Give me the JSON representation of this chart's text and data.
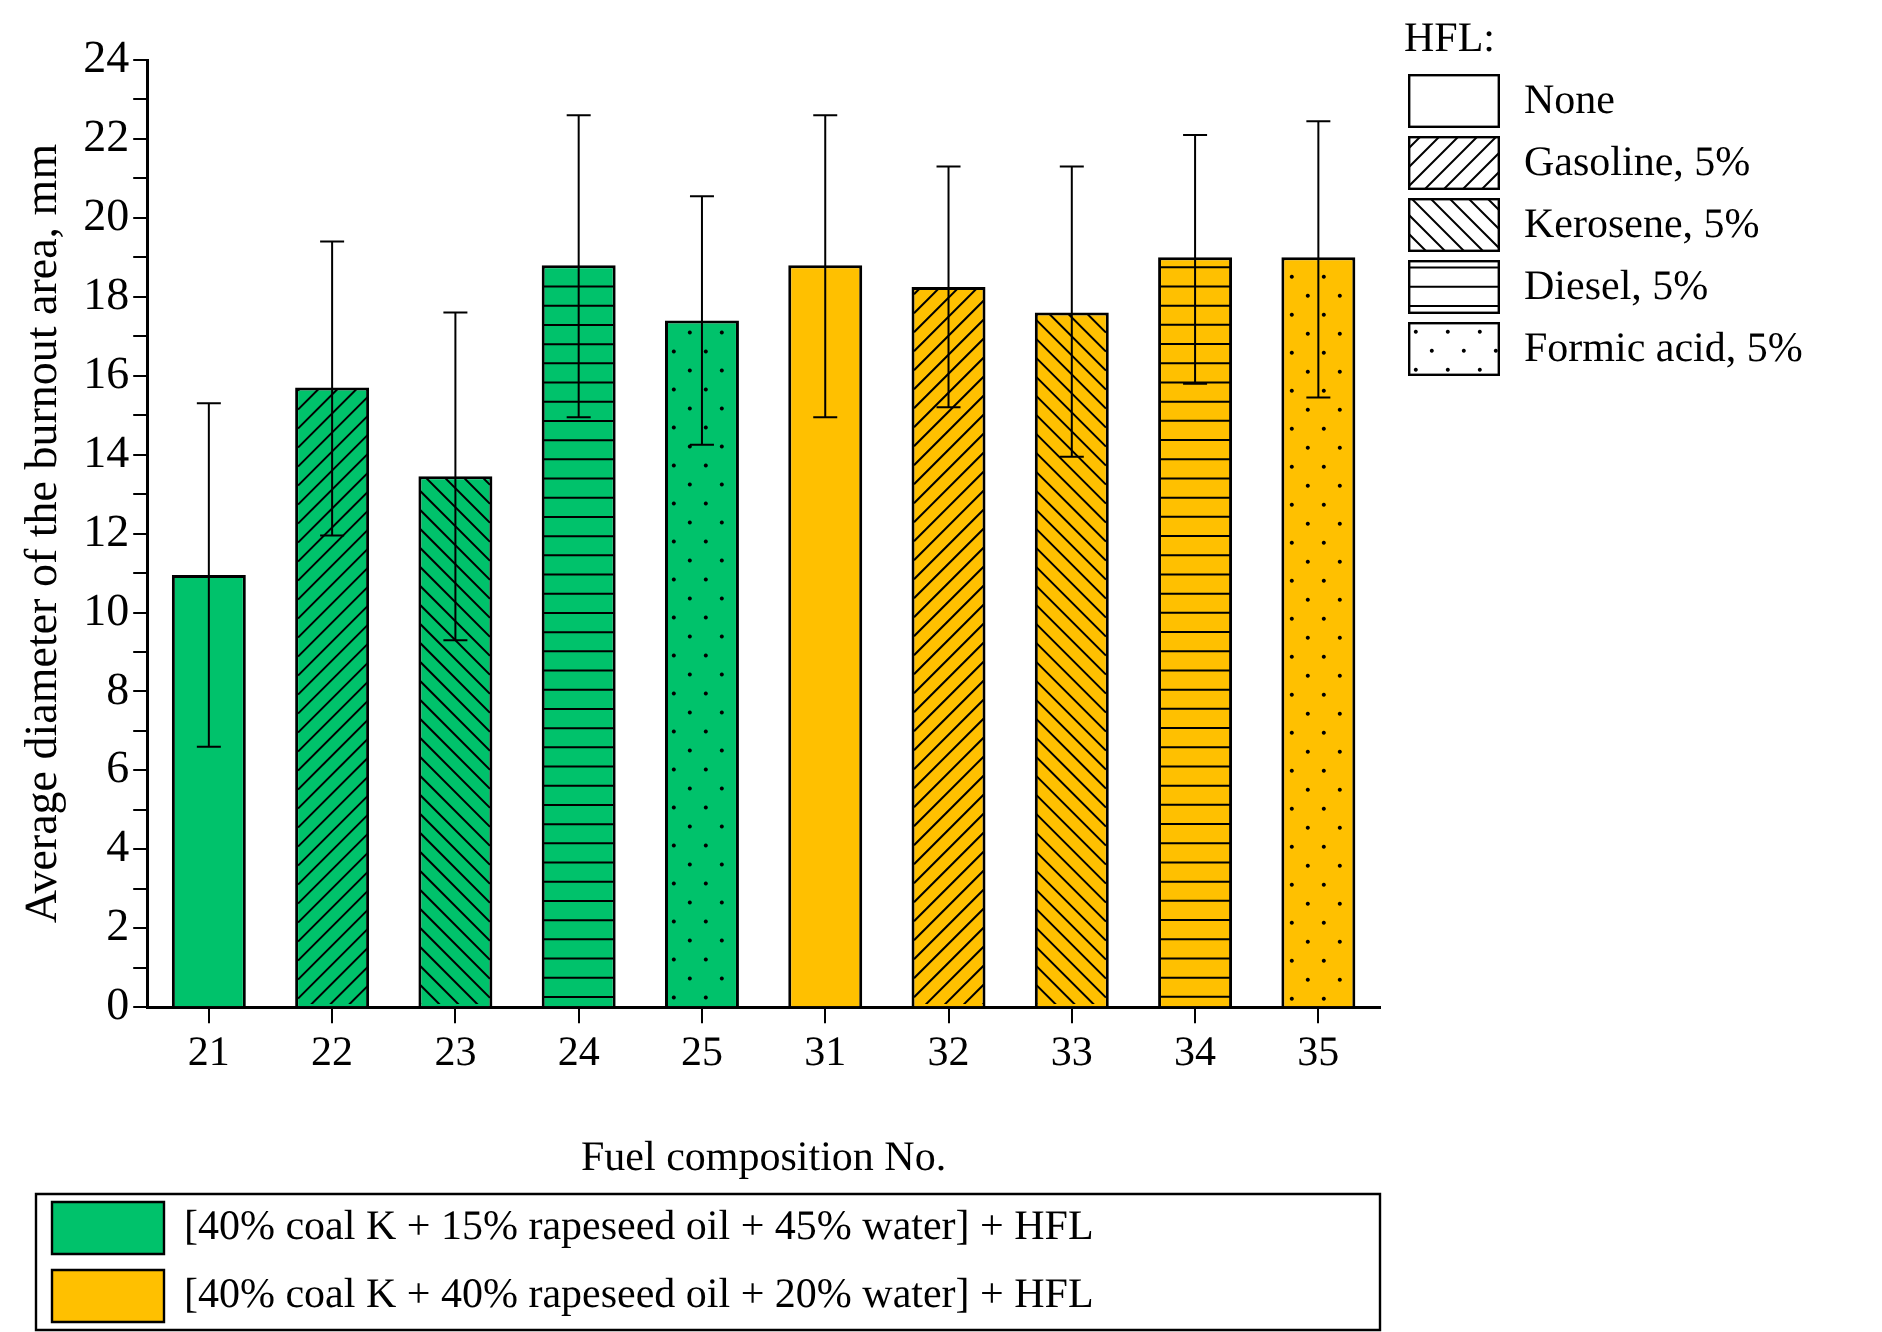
{
  "chart_data": {
    "type": "bar",
    "xlabel": "Fuel composition No.",
    "ylabel": "Average diameter of the burnout area, mm",
    "categories": [
      "21",
      "22",
      "23",
      "24",
      "25",
      "31",
      "32",
      "33",
      "34",
      "35"
    ],
    "series": [
      {
        "name": "[40% coal K + 15% rapeseed oil + 45% water] + HFL",
        "color": "#00c26b",
        "values": [
          10.95,
          15.7,
          13.45,
          18.8,
          17.4,
          null,
          null,
          null,
          null,
          null
        ],
        "errors": [
          [
            6.6,
            15.3
          ],
          [
            11.95,
            19.4
          ],
          [
            9.3,
            17.6
          ],
          [
            14.95,
            22.6
          ],
          [
            14.25,
            20.55
          ],
          null,
          null,
          null,
          null,
          null
        ]
      },
      {
        "name": "[40% coal K + 40% rapeseed oil + 20% water] + HFL",
        "color": "#ffc000",
        "values": [
          null,
          null,
          null,
          null,
          null,
          18.8,
          18.25,
          17.6,
          19.0,
          19.0
        ],
        "errors": [
          null,
          null,
          null,
          null,
          null,
          [
            14.95,
            22.6
          ],
          [
            15.2,
            21.3
          ],
          [
            13.95,
            21.3
          ],
          [
            15.8,
            22.1
          ],
          [
            15.45,
            22.45
          ]
        ]
      }
    ],
    "ylim": [
      0,
      24
    ],
    "yticks": [
      0,
      {
        "value": 1,
        "label": null
      },
      2,
      {
        "value": 3,
        "label": null
      },
      4,
      {
        "value": 5,
        "label": null
      },
      6,
      {
        "value": 7,
        "label": null
      },
      8,
      {
        "value": 9,
        "label": null
      },
      10,
      {
        "value": 11,
        "label": null
      },
      12,
      {
        "value": 13,
        "label": null
      },
      14,
      {
        "value": 15,
        "label": null
      },
      16,
      {
        "value": 17,
        "label": null
      },
      18,
      {
        "value": 19,
        "label": null
      },
      20,
      {
        "value": 21,
        "label": null
      },
      22,
      {
        "value": 23,
        "label": null
      },
      24
    ],
    "grid": false,
    "legend": "bottom",
    "legend_title": "HFL:",
    "annotations": [
      "None",
      "Gasoline, 5%",
      "Kerosene, 5%",
      "Diesel, 5%",
      "Formic acid, 5%"
    ]
  }
}
